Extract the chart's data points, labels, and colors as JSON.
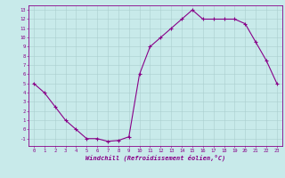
{
  "x": [
    0,
    1,
    2,
    3,
    4,
    5,
    6,
    7,
    8,
    9,
    10,
    11,
    12,
    13,
    14,
    15,
    16,
    17,
    18,
    19,
    20,
    21,
    22,
    23
  ],
  "y": [
    5,
    4,
    2.5,
    1,
    0,
    -1,
    -1,
    -1.3,
    -1.2,
    -0.8,
    6,
    9,
    10,
    11,
    12,
    13,
    12,
    12,
    12,
    12,
    11.5,
    9.5,
    7.5,
    5
  ],
  "line_color": "#880088",
  "marker": "+",
  "marker_color": "#880088",
  "bg_color": "#c8eaea",
  "grid_color": "#aacfcf",
  "xlabel": "Windchill (Refroidissement éolien,°C)",
  "xlim": [
    -0.5,
    23.5
  ],
  "ylim": [
    -1.8,
    13.5
  ],
  "yticks": [
    -1,
    0,
    1,
    2,
    3,
    4,
    5,
    6,
    7,
    8,
    9,
    10,
    11,
    12,
    13
  ],
  "xticks": [
    0,
    1,
    2,
    3,
    4,
    5,
    6,
    7,
    8,
    9,
    10,
    11,
    12,
    13,
    14,
    15,
    16,
    17,
    18,
    19,
    20,
    21,
    22,
    23
  ],
  "axis_color": "#880088",
  "font_color": "#880088",
  "linewidth": 0.8,
  "markersize": 3
}
